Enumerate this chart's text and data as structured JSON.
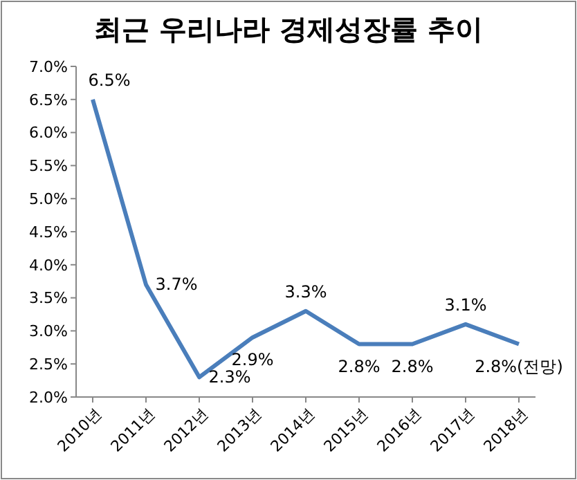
{
  "chart_data": {
    "type": "line",
    "title": "최근 우리나라 경제성장률 추이",
    "categories": [
      "2010년",
      "2011년",
      "2012년",
      "2013년",
      "2014년",
      "2015년",
      "2016년",
      "2017년",
      "2018년"
    ],
    "series": [
      {
        "color": "#4a7ebb",
        "values": [
          6.5,
          3.7,
          2.3,
          2.9,
          3.3,
          2.8,
          2.8,
          3.1,
          2.8
        ],
        "value_labels": [
          "6.5%",
          "3.7%",
          "2.3%",
          "2.9%",
          "3.3%",
          "2.8%",
          "2.8%",
          "3.1%",
          "2.8%(전망)"
        ]
      }
    ],
    "ylim": [
      2,
      7
    ],
    "yticks": [
      {
        "value": 2,
        "label": "2.0%"
      },
      {
        "value": 2.5,
        "label": "2.5%"
      },
      {
        "value": 3,
        "label": "3.0%"
      },
      {
        "value": 3.5,
        "label": "3.5%"
      },
      {
        "value": 4,
        "label": "4.0%"
      },
      {
        "value": 4.5,
        "label": "4.5%"
      },
      {
        "value": 5,
        "label": "5.0%"
      },
      {
        "value": 5.5,
        "label": "5.5%"
      },
      {
        "value": 6,
        "label": "6.0%"
      },
      {
        "value": 6.5,
        "label": "6.5%"
      },
      {
        "value": 7,
        "label": "7.0%"
      }
    ],
    "grid": false,
    "marker": "none",
    "line_style": "solid"
  }
}
